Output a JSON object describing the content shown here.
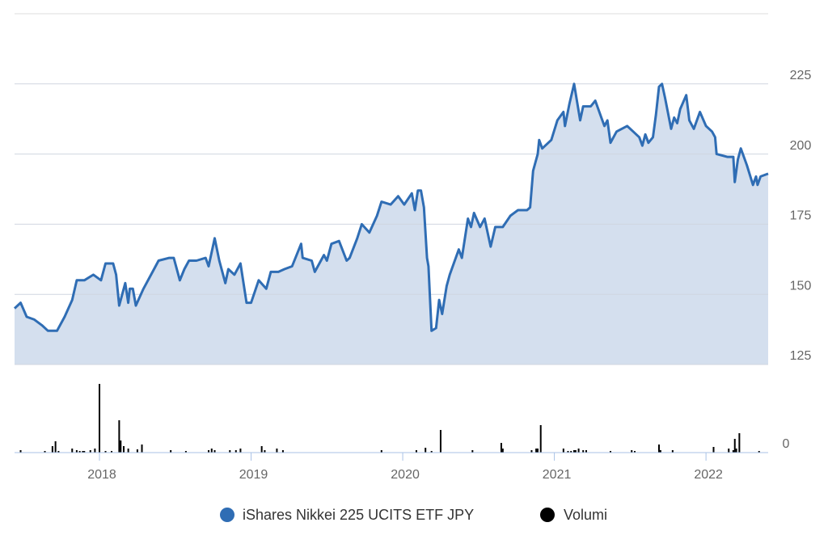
{
  "chart_data": {
    "type": "line",
    "xlim": [
      2017.44,
      2022.41
    ],
    "xticks": [
      2018,
      2019,
      2020,
      2021,
      2022
    ],
    "ylim": [
      125,
      250
    ],
    "yticks": [
      125,
      150,
      175,
      200,
      225
    ],
    "y2lim": [
      0,
      100
    ],
    "y2ticks": [
      0
    ],
    "grid": true,
    "legend": "bottom",
    "series": [
      {
        "name": "iShares Nikkei 225 UCITS ETF JPY",
        "color": "#2f6db4",
        "fill": "#d4dfee",
        "area": true,
        "x": [
          2017.44,
          2017.48,
          2017.52,
          2017.57,
          2017.62,
          2017.66,
          2017.72,
          2017.77,
          2017.82,
          2017.85,
          2017.9,
          2017.96,
          2018.01,
          2018.04,
          2018.09,
          2018.11,
          2018.13,
          2018.17,
          2018.19,
          2018.2,
          2018.22,
          2018.24,
          2018.29,
          2018.36,
          2018.39,
          2018.46,
          2018.49,
          2018.53,
          2018.56,
          2018.59,
          2018.64,
          2018.7,
          2018.72,
          2018.76,
          2018.79,
          2018.83,
          2018.85,
          2018.89,
          2018.93,
          2018.97,
          2019.0,
          2019.05,
          2019.1,
          2019.13,
          2019.18,
          2019.22,
          2019.27,
          2019.33,
          2019.34,
          2019.4,
          2019.42,
          2019.48,
          2019.5,
          2019.53,
          2019.58,
          2019.63,
          2019.65,
          2019.7,
          2019.73,
          2019.78,
          2019.83,
          2019.86,
          2019.92,
          2019.97,
          2020.01,
          2020.06,
          2020.08,
          2020.1,
          2020.12,
          2020.14,
          2020.16,
          2020.17,
          2020.19,
          2020.22,
          2020.24,
          2020.26,
          2020.29,
          2020.31,
          2020.37,
          2020.39,
          2020.43,
          2020.45,
          2020.47,
          2020.51,
          2020.54,
          2020.58,
          2020.61,
          2020.66,
          2020.71,
          2020.76,
          2020.82,
          2020.84,
          2020.86,
          2020.89,
          2020.9,
          2020.92,
          2020.98,
          2021.02,
          2021.06,
          2021.07,
          2021.1,
          2021.13,
          2021.17,
          2021.19,
          2021.24,
          2021.27,
          2021.31,
          2021.33,
          2021.35,
          2021.37,
          2021.41,
          2021.48,
          2021.52,
          2021.56,
          2021.58,
          2021.6,
          2021.62,
          2021.65,
          2021.67,
          2021.69,
          2021.71,
          2021.73,
          2021.77,
          2021.79,
          2021.81,
          2021.83,
          2021.87,
          2021.89,
          2021.92,
          2021.96,
          2022.0,
          2022.04,
          2022.06,
          2022.07,
          2022.14,
          2022.18,
          2022.19,
          2022.21,
          2022.23,
          2022.27,
          2022.31,
          2022.33,
          2022.34,
          2022.36,
          2022.41
        ],
        "values": [
          145,
          147,
          142,
          141,
          139,
          137,
          137,
          142,
          148,
          155,
          155,
          157,
          155,
          161,
          161,
          157,
          146,
          154,
          147,
          152,
          152,
          146,
          152,
          159,
          162,
          163,
          163,
          155,
          159,
          162,
          162,
          163,
          160,
          170,
          162,
          154,
          159,
          157,
          161,
          147,
          147,
          155,
          152,
          158,
          158,
          159,
          160,
          168,
          163,
          162,
          158,
          164,
          162,
          168,
          169,
          162,
          163,
          170,
          175,
          172,
          178,
          183,
          182,
          185,
          182,
          186,
          180,
          187,
          187,
          181,
          163,
          160,
          137,
          138,
          148,
          143,
          153,
          157,
          166,
          163,
          177,
          174,
          179,
          174,
          177,
          167,
          174,
          174,
          178,
          180,
          180,
          181,
          194,
          200,
          205,
          202,
          205,
          212,
          215,
          210,
          218,
          225,
          212,
          217,
          217,
          219,
          213,
          210,
          212,
          204,
          208,
          210,
          208,
          206,
          203,
          207,
          204,
          206,
          214,
          224,
          225,
          220,
          209,
          213,
          211,
          216,
          221,
          212,
          209,
          215,
          210,
          208,
          206,
          200,
          199,
          199,
          190,
          198,
          202,
          196,
          189,
          192,
          189,
          192,
          193
        ]
      },
      {
        "name": "Volumi",
        "color": "#000000",
        "type": "bar",
        "axis": "y2",
        "x": [
          2017.48,
          2017.64,
          2017.69,
          2017.71,
          2017.73,
          2017.82,
          2017.85,
          2017.87,
          2017.89,
          2017.9,
          2017.94,
          2017.97,
          2018.0,
          2018.04,
          2018.08,
          2018.13,
          2018.14,
          2018.16,
          2018.19,
          2018.25,
          2018.28,
          2018.47,
          2018.57,
          2018.72,
          2018.74,
          2018.76,
          2018.86,
          2018.9,
          2018.93,
          2019.07,
          2019.09,
          2019.17,
          2019.21,
          2019.86,
          2020.09,
          2020.15,
          2020.19,
          2020.25,
          2020.46,
          2020.65,
          2020.66,
          2020.85,
          2020.88,
          2020.89,
          2020.91,
          2021.06,
          2021.09,
          2021.11,
          2021.13,
          2021.14,
          2021.16,
          2021.19,
          2021.21,
          2021.37,
          2021.51,
          2021.53,
          2021.69,
          2021.7,
          2021.78,
          2022.05,
          2022.15,
          2022.18,
          2022.19,
          2022.2,
          2022.22,
          2022.35
        ],
        "values": [
          3,
          2,
          8,
          14,
          2,
          5,
          3,
          2,
          2,
          2,
          3,
          5,
          85,
          2,
          2,
          40,
          15,
          8,
          5,
          4,
          10,
          3,
          2,
          3,
          5,
          3,
          3,
          3,
          5,
          8,
          3,
          5,
          3,
          3,
          3,
          6,
          2,
          28,
          3,
          12,
          5,
          3,
          5,
          5,
          34,
          5,
          2,
          2,
          3,
          3,
          5,
          3,
          3,
          2,
          3,
          2,
          10,
          3,
          3,
          7,
          5,
          3,
          17,
          5,
          24,
          2
        ]
      }
    ]
  }
}
